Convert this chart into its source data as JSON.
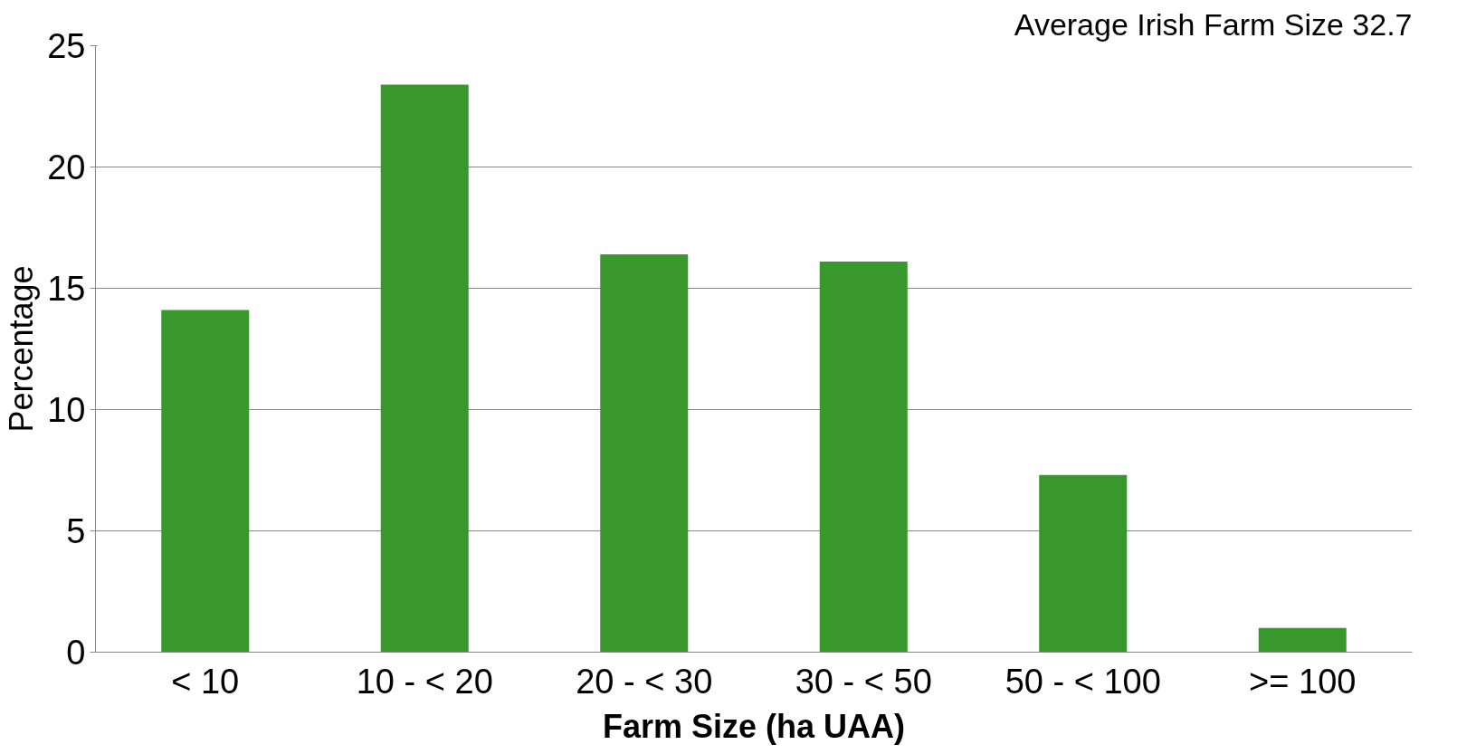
{
  "chart_data": {
    "type": "bar",
    "title": "Average Irish Farm Size 32.7",
    "xlabel": "Farm Size (ha UAA)",
    "ylabel": "Percentage",
    "categories": [
      "< 10",
      "10 - < 20",
      "20 - < 30",
      "30 - < 50",
      "50 - < 100",
      ">= 100"
    ],
    "values": [
      14.1,
      23.4,
      16.4,
      16.1,
      7.3,
      1.0
    ],
    "color": "#38982b",
    "ylim": [
      0,
      25
    ],
    "yticks": [
      0,
      5,
      10,
      15,
      20,
      25
    ],
    "grid": "y"
  }
}
